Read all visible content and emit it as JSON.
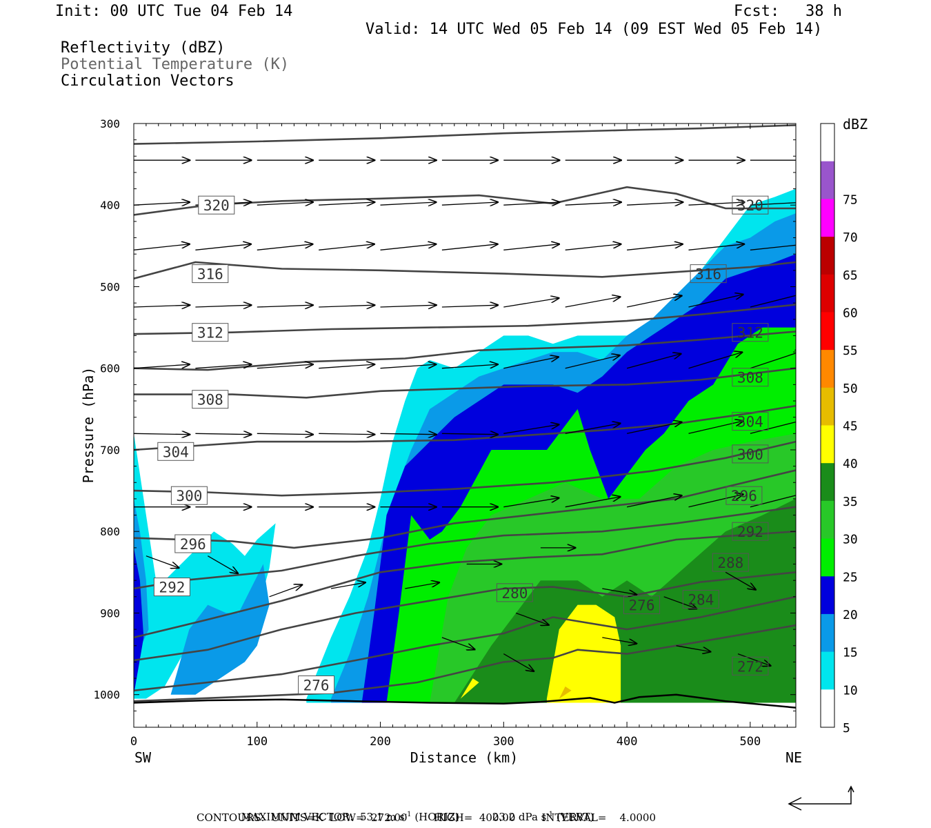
{
  "header": {
    "init": "Init: 00 UTC Tue 04 Feb 14",
    "fcst_label": "Fcst:",
    "fcst_value": "38 h",
    "valid": "Valid: 14 UTC Wed 05 Feb 14 (09 EST Wed 05 Feb 14)",
    "fields": [
      "Reflectivity (dBZ)",
      "Potential Temperature (K)",
      "Circulation Vectors"
    ]
  },
  "colors": {
    "dbz": [
      "#ffffff",
      "#00e5ee",
      "#0a9ae8",
      "#0000dd",
      "#00ee00",
      "#28c828",
      "#1a8c1a",
      "#ffff00",
      "#e6bc00",
      "#ff8800",
      "#ff0000",
      "#dd0000",
      "#bb0000",
      "#ff00ff",
      "#9955cc"
    ],
    "contour": "#444444",
    "vector": "#000000"
  },
  "chart_data": {
    "type": "cross-section",
    "xlabel": "Distance (km)",
    "ylabel": "Pressure (hPa)",
    "x_ticks": [
      "0",
      "100",
      "200",
      "300",
      "400",
      "500"
    ],
    "y_ticks": [
      "300",
      "400",
      "500",
      "600",
      "700",
      "800",
      "900",
      "1000"
    ],
    "xlim": [
      0,
      537
    ],
    "ylim": [
      1040,
      300
    ],
    "x_end_labels": {
      "left": "SW",
      "right": "NE"
    },
    "colorbar": {
      "unit": "dBZ",
      "levels": [
        "5",
        "10",
        "15",
        "20",
        "25",
        "30",
        "35",
        "40",
        "45",
        "50",
        "55",
        "60",
        "65",
        "70",
        "75"
      ]
    },
    "theta_labels": [
      "320",
      "316",
      "312",
      "308",
      "304",
      "300",
      "296",
      "292",
      "276",
      "320",
      "316",
      "312",
      "308",
      "304",
      "300",
      "296",
      "292",
      "288",
      "284",
      "280",
      "276",
      "272"
    ],
    "reflectivity_regions": [
      {
        "dbz": 5,
        "x": [
          0,
          8,
          15,
          18,
          25,
          45,
          65,
          80,
          90,
          100,
          115,
          110,
          100,
          85,
          70,
          55,
          40,
          25,
          10,
          0
        ],
        "p": [
          680,
          760,
          830,
          860,
          860,
          830,
          800,
          815,
          830,
          810,
          790,
          845,
          900,
          940,
          930,
          940,
          950,
          990,
          1005,
          1005
        ]
      },
      {
        "dbz": 5,
        "x": [
          140,
          160,
          175,
          190,
          200,
          210,
          220,
          230,
          240,
          260,
          280,
          300,
          320,
          340,
          360,
          380,
          400,
          420,
          440,
          460,
          480,
          500,
          520,
          537,
          537,
          140
        ],
        "p": [
          1005,
          930,
          880,
          820,
          760,
          690,
          640,
          600,
          590,
          600,
          580,
          560,
          560,
          570,
          560,
          560,
          560,
          550,
          510,
          480,
          440,
          400,
          390,
          380,
          1010,
          1010
        ]
      },
      {
        "dbz": 10,
        "x": [
          0,
          5,
          10,
          12,
          0
        ],
        "p": [
          760,
          800,
          860,
          920,
          960
        ]
      },
      {
        "dbz": 10,
        "x": [
          30,
          45,
          60,
          75,
          85,
          95,
          105,
          110,
          100,
          90,
          70,
          50,
          30
        ],
        "p": [
          1000,
          920,
          890,
          900,
          900,
          870,
          840,
          890,
          940,
          960,
          980,
          1000,
          1000
        ]
      },
      {
        "dbz": 10,
        "x": [
          160,
          175,
          190,
          200,
          210,
          225,
          240,
          260,
          280,
          300,
          320,
          340,
          360,
          380,
          400,
          420,
          440,
          460,
          480,
          500,
          520,
          537,
          537,
          160
        ],
        "p": [
          1005,
          950,
          880,
          820,
          760,
          700,
          650,
          630,
          610,
          600,
          590,
          580,
          580,
          590,
          560,
          540,
          510,
          480,
          450,
          440,
          420,
          410,
          1010,
          1010
        ]
      },
      {
        "dbz": 15,
        "x": [
          0,
          5,
          8,
          0
        ],
        "p": [
          820,
          860,
          930,
          1000
        ]
      },
      {
        "dbz": 15,
        "x": [
          185,
          195,
          205,
          220,
          240,
          260,
          280,
          300,
          320,
          340,
          360,
          380,
          400,
          420,
          440,
          460,
          480,
          500,
          520,
          537,
          537,
          185
        ],
        "p": [
          1010,
          900,
          780,
          720,
          690,
          660,
          640,
          620,
          620,
          620,
          630,
          610,
          580,
          560,
          540,
          520,
          490,
          480,
          470,
          460,
          1010,
          1010
        ]
      },
      {
        "dbz": 20,
        "x": [
          205,
          215,
          225,
          240,
          250,
          265,
          290,
          300,
          315,
          335,
          345,
          360,
          370,
          385,
          395,
          415,
          430,
          450,
          470,
          490,
          510,
          537,
          537,
          205
        ],
        "p": [
          1010,
          900,
          780,
          810,
          800,
          770,
          700,
          700,
          700,
          700,
          680,
          650,
          700,
          760,
          740,
          700,
          680,
          640,
          620,
          570,
          550,
          550,
          1010,
          1010
        ]
      },
      {
        "dbz": 25,
        "x": [
          240,
          255,
          270,
          290,
          320,
          350,
          380,
          410,
          440,
          470,
          500,
          537,
          537,
          240
        ],
        "p": [
          1010,
          880,
          820,
          780,
          760,
          740,
          760,
          760,
          720,
          700,
          690,
          680,
          1010,
          1010
        ]
      },
      {
        "dbz": 30,
        "x": [
          260,
          290,
          310,
          330,
          360,
          380,
          400,
          420,
          450,
          480,
          510,
          537,
          537,
          260
        ],
        "p": [
          1010,
          940,
          900,
          860,
          860,
          880,
          860,
          880,
          840,
          800,
          780,
          760,
          1010,
          1010
        ]
      },
      {
        "dbz": 35,
        "x": [
          335,
          345,
          360,
          375,
          390,
          395,
          395,
          335
        ],
        "p": [
          1005,
          920,
          890,
          890,
          905,
          940,
          1010,
          1010
        ]
      },
      {
        "dbz": 35,
        "x": [
          265,
          275,
          280,
          265
        ],
        "p": [
          1005,
          980,
          985,
          1005
        ]
      },
      {
        "dbz": 40,
        "x": [
          345,
          350,
          355,
          345
        ],
        "p": [
          1005,
          990,
          995,
          1005
        ]
      }
    ]
  },
  "footer": {
    "max_vector_label": "MAXIMUM VECTOR:",
    "horiz_value": "53.1 m s",
    "horiz_suffix": "(HORIZ)",
    "vert_value": "23.2 dPa s",
    "vert_suffix": "(VERT)",
    "exponent": "-1",
    "contours_line": "CONTOURS:  UNITS=K  LOW=  272.00        HIGH=  400.00        INTERVAL=    4.0000"
  }
}
